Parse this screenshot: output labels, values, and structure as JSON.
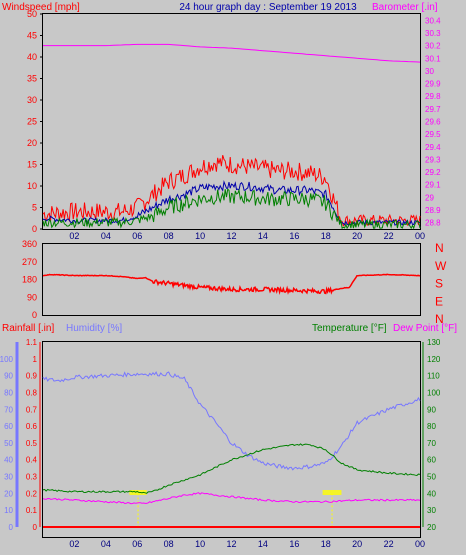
{
  "title": "24 hour graph day : September 19 2013",
  "colors": {
    "background": "#c8c8c8",
    "windspeed": "#ff0000",
    "avg_wind": "#0000aa",
    "gust": "#008000",
    "barometer": "#ff00ff",
    "direction": "#ff0000",
    "rainfall": "#ff0000",
    "humidity": "#7777ff",
    "temperature": "#008000",
    "dewpoint": "#ff00ff",
    "sun": "#ffff00"
  },
  "x_ticks": [
    "02",
    "04",
    "06",
    "08",
    "10",
    "12",
    "14",
    "16",
    "18",
    "20",
    "22",
    "00"
  ],
  "chart_data": [
    {
      "type": "line",
      "title": "24 hour graph day : September 19 2013",
      "x_unit": "hour",
      "y_left_label": "Windspeed [mph]",
      "y_right_label": "Barometer [.in]",
      "y_left_ticks": [
        "0",
        "5",
        "10",
        "15",
        "20",
        "25",
        "30",
        "35",
        "40",
        "45",
        "50"
      ],
      "y_right_ticks": [
        "28.8",
        "28.9",
        "29",
        "29.1",
        "29.2",
        "29.3",
        "29.4",
        "29.5",
        "29.6",
        "29.7",
        "29.8",
        "29.9",
        "30",
        "30.1",
        "30.2",
        "30.3",
        "30.4"
      ],
      "ylim_left": [
        0,
        50
      ],
      "ylim_right": [
        28.75,
        30.45
      ],
      "series": [
        {
          "axis": "left",
          "x": [
            0,
            2,
            4,
            5,
            6,
            7,
            8,
            9,
            10,
            11,
            12,
            13,
            14,
            15,
            16,
            17,
            18,
            18.5,
            19,
            20,
            22,
            24
          ],
          "values": [
            3.5,
            4,
            4,
            4,
            5,
            8,
            11,
            12.5,
            14.5,
            15.5,
            15,
            14.5,
            14,
            13.5,
            13.5,
            13,
            12,
            7,
            2,
            2,
            2,
            2
          ]
        },
        {
          "axis": "left",
          "x": [
            0,
            2,
            4,
            5,
            6,
            7,
            8,
            9,
            10,
            11,
            12,
            13,
            14,
            15,
            16,
            17,
            18,
            18.5,
            19,
            20,
            22,
            24
          ],
          "values": [
            2.5,
            2,
            2,
            2,
            3,
            5,
            7,
            8,
            9.5,
            10,
            10,
            10,
            9.5,
            9,
            9,
            9,
            8,
            5,
            1.5,
            1.5,
            1.5,
            1.5
          ]
        },
        {
          "axis": "left",
          "x": [
            0,
            2,
            4,
            5,
            6,
            7,
            8,
            9,
            10,
            11,
            12,
            13,
            14,
            15,
            16,
            17,
            18,
            18.5,
            19,
            20,
            22,
            24
          ],
          "values": [
            1.5,
            1.5,
            1.5,
            1.5,
            2,
            3,
            5,
            6,
            7,
            7.5,
            7.5,
            7.5,
            7,
            7,
            7,
            7,
            6,
            3.5,
            1,
            1,
            1,
            1
          ]
        },
        {
          "axis": "right",
          "x": [
            0,
            2,
            4,
            6,
            8,
            10,
            12,
            14,
            16,
            18,
            20,
            22,
            24
          ],
          "values": [
            30.2,
            30.2,
            30.2,
            30.21,
            30.21,
            30.19,
            30.18,
            30.16,
            30.14,
            30.12,
            30.1,
            30.08,
            30.07
          ]
        }
      ]
    },
    {
      "type": "line",
      "x_unit": "hour",
      "y_left_ticks": [
        "0",
        "90",
        "180",
        "270",
        "360"
      ],
      "y_right_ticks": [
        "N",
        "W",
        "S",
        "E",
        "N"
      ],
      "ylim": [
        0,
        360
      ],
      "series": [
        {
          "x": [
            0,
            0.5,
            2,
            4,
            5,
            6,
            6.5,
            7,
            8,
            9,
            10,
            12,
            14,
            16,
            17,
            18,
            19,
            19.5,
            20,
            22,
            24
          ],
          "values": [
            200,
            205,
            200,
            200,
            195,
            185,
            190,
            170,
            160,
            150,
            140,
            130,
            130,
            125,
            122,
            120,
            135,
            140,
            200,
            205,
            200
          ]
        }
      ]
    },
    {
      "type": "line",
      "x_unit": "hour",
      "y_rain_label": "Rainfall [.in]",
      "y_hum_label": "Humidity [%]",
      "y_temp_label": "Temperature [°F]",
      "y_dew_label": "Dew Point [°F]",
      "y_rain_ticks": [
        "0",
        "0.1",
        "0.2",
        "0.3",
        "0.4",
        "0.5",
        "0.6",
        "0.7",
        "0.8",
        "0.9",
        "1",
        "1.1"
      ],
      "y_hum_ticks": [
        "0",
        "10",
        "20",
        "30",
        "40",
        "50",
        "60",
        "70",
        "80",
        "90",
        "100"
      ],
      "y_temp_ticks": [
        "20",
        "30",
        "40",
        "50",
        "60",
        "70",
        "80",
        "90",
        "100",
        "110",
        "120",
        "130"
      ],
      "ylim_rain": [
        0,
        1.1
      ],
      "ylim_hum": [
        0,
        110
      ],
      "ylim_temp": [
        20,
        130
      ],
      "series": [
        {
          "name": "Humidity",
          "axis": "hum",
          "x": [
            0,
            1,
            2,
            4,
            6,
            8,
            9,
            10,
            11,
            12,
            13,
            14,
            15,
            16,
            17,
            18,
            19,
            20,
            22,
            24
          ],
          "values": [
            88,
            87,
            89,
            90,
            91,
            91,
            88,
            73,
            62,
            50,
            43,
            38,
            36,
            35,
            36,
            38,
            48,
            62,
            70,
            76
          ]
        },
        {
          "name": "Temperature",
          "axis": "temp",
          "x": [
            0,
            2,
            4,
            6,
            6.5,
            7,
            8,
            10,
            12,
            14,
            16,
            17,
            18,
            19,
            20,
            22,
            24
          ],
          "values": [
            42,
            41,
            41,
            41,
            40,
            41,
            45,
            51,
            60,
            66,
            69,
            69,
            66,
            58,
            54,
            52,
            51
          ]
        },
        {
          "name": "Dew Point",
          "axis": "temp",
          "x": [
            0,
            2,
            4,
            6,
            6.5,
            7,
            8,
            9,
            10,
            11,
            12,
            14,
            16,
            18,
            20,
            22,
            24
          ],
          "values": [
            37,
            36,
            35,
            34,
            34,
            35,
            37,
            39,
            40,
            39,
            38,
            36,
            35,
            35,
            36,
            36,
            36
          ]
        },
        {
          "name": "Rainfall",
          "axis": "rain",
          "x": [
            0,
            24
          ],
          "values": [
            0,
            0
          ]
        }
      ]
    }
  ]
}
